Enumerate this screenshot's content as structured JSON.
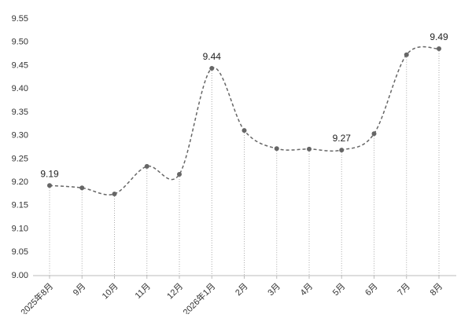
{
  "chart_data": {
    "type": "line",
    "categories": [
      "2025年8月",
      "9月",
      "10月",
      "11月",
      "12月",
      "2026年1月",
      "2月",
      "3月",
      "4月",
      "5月",
      "6月",
      "7月",
      "8月"
    ],
    "values": [
      9.193,
      9.188,
      9.175,
      9.234,
      9.217,
      9.444,
      9.311,
      9.272,
      9.271,
      9.269,
      9.304,
      9.473,
      9.486
    ],
    "value_labels": [
      "9.19",
      null,
      null,
      null,
      null,
      "9.44",
      null,
      null,
      null,
      "9.27",
      null,
      null,
      "9.49"
    ],
    "color": "#666666",
    "ylim": [
      9.0,
      9.55
    ],
    "yticks": [
      {
        "value": 9.0,
        "label": "9.00"
      },
      {
        "value": 9.05,
        "label": "9.05"
      },
      {
        "value": 9.1,
        "label": "9.10"
      },
      {
        "value": 9.15,
        "label": "9.15"
      },
      {
        "value": 9.2,
        "label": "9.20"
      },
      {
        "value": 9.25,
        "label": "9.25"
      },
      {
        "value": 9.3,
        "label": "9.30"
      },
      {
        "value": 9.35,
        "label": "9.35"
      },
      {
        "value": 9.4,
        "label": "9.40"
      },
      {
        "value": 9.45,
        "label": "9.45"
      },
      {
        "value": 9.5,
        "label": "9.50"
      },
      {
        "value": 9.55,
        "label": "9.55"
      }
    ]
  }
}
